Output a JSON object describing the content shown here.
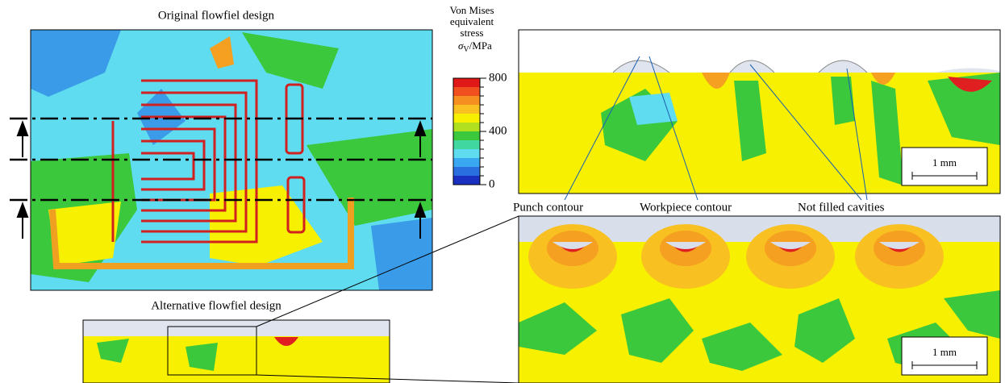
{
  "left": {
    "title": "Original flowfiel design",
    "bottom_title": "Alternative flowfiel design"
  },
  "colorbar": {
    "title_lines": [
      "Von Mises",
      "equivalent",
      "stress"
    ],
    "symbol": "σ",
    "subscript": "V",
    "unit": "/MPa",
    "ylim": [
      0,
      800
    ],
    "yticks": [
      0,
      400,
      800
    ]
  },
  "labels": {
    "punch": "Punch contour",
    "workpiece": "Workpiece contour",
    "cavities": "Not filled cavities"
  },
  "scale_bars": [
    "1 mm",
    "1 mm"
  ]
}
